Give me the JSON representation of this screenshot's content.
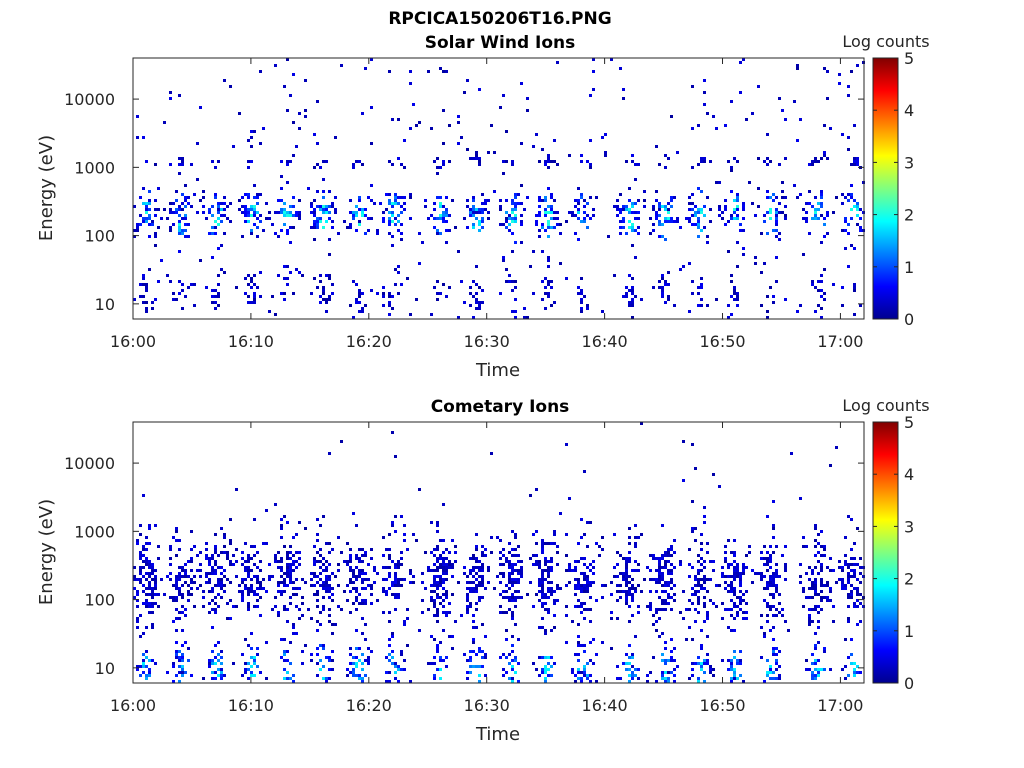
{
  "figure": {
    "title": "RPCICA150206T16.PNG"
  },
  "chart_data": [
    {
      "type": "heatmap",
      "title": "Solar Wind Ions",
      "xlabel": "Time",
      "ylabel": "Energy (eV)",
      "yscale": "log",
      "xlim": [
        "16:00",
        "17:02"
      ],
      "ylim": [
        6,
        40000
      ],
      "x_ticks": [
        "16:00",
        "16:10",
        "16:20",
        "16:30",
        "16:40",
        "16:50",
        "17:00"
      ],
      "y_ticks": [
        "10",
        "100",
        "1000",
        "10000"
      ],
      "colorbar": {
        "label": "Log counts",
        "range": [
          0,
          5
        ],
        "ticks": [
          "0",
          "1",
          "2",
          "3",
          "4",
          "5"
        ],
        "colormap": "jet"
      },
      "sweep_times": [
        "16:01",
        "16:04",
        "16:07",
        "16:10",
        "16:13",
        "16:16",
        "16:19",
        "16:22",
        "16:26",
        "16:29",
        "16:32",
        "16:35",
        "16:38",
        "16:42",
        "16:45",
        "16:48",
        "16:51",
        "16:54",
        "16:58",
        "17:01"
      ],
      "peak_energy_eV": 200,
      "peak_log_counts": 2
    },
    {
      "type": "heatmap",
      "title": "Cometary Ions",
      "xlabel": "Time",
      "ylabel": "Energy (eV)",
      "yscale": "log",
      "xlim": [
        "16:00",
        "17:02"
      ],
      "ylim": [
        6,
        40000
      ],
      "x_ticks": [
        "16:00",
        "16:10",
        "16:20",
        "16:30",
        "16:40",
        "16:50",
        "17:00"
      ],
      "y_ticks": [
        "10",
        "100",
        "1000",
        "10000"
      ],
      "colorbar": {
        "label": "Log counts",
        "range": [
          0,
          5
        ],
        "ticks": [
          "0",
          "1",
          "2",
          "3",
          "4",
          "5"
        ],
        "colormap": "jet"
      },
      "sweep_times": [
        "16:01",
        "16:04",
        "16:07",
        "16:10",
        "16:13",
        "16:16",
        "16:19",
        "16:22",
        "16:26",
        "16:29",
        "16:32",
        "16:35",
        "16:38",
        "16:42",
        "16:45",
        "16:48",
        "16:51",
        "16:54",
        "16:58",
        "17:01"
      ],
      "peak_energy_eV": 10,
      "peak_log_counts": 1.8
    }
  ]
}
